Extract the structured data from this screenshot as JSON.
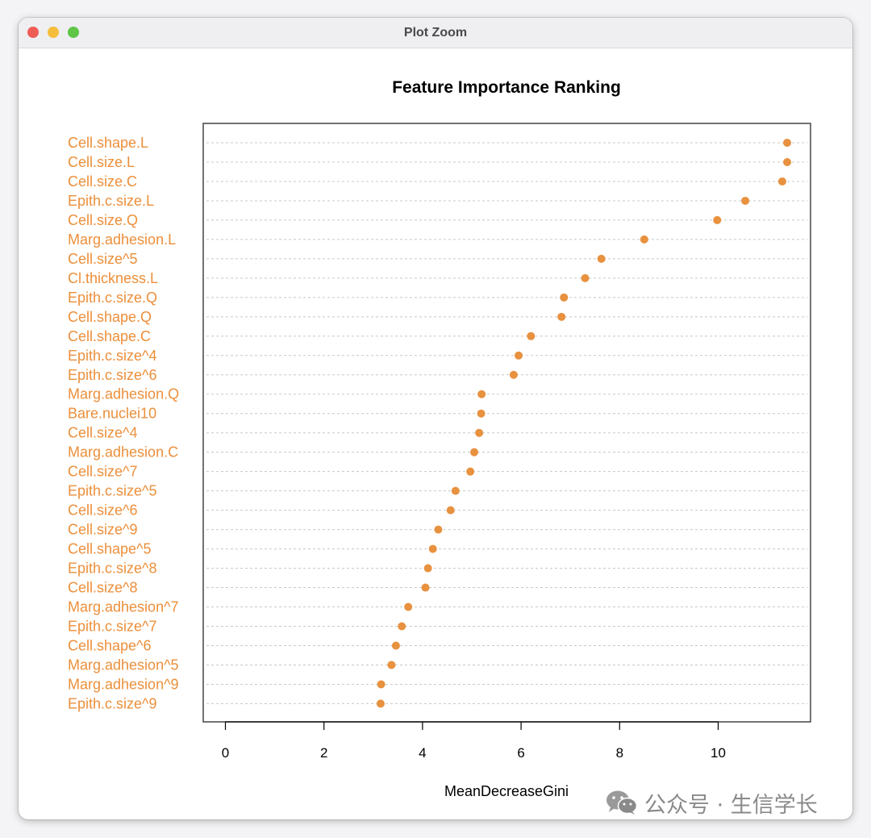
{
  "window": {
    "title": "Plot Zoom"
  },
  "watermark": {
    "icon": "wechat-icon",
    "text": "公众号 · 生信学长"
  },
  "colors": {
    "point": "#e8913f",
    "label": "#ec8f3a",
    "grid": "#c8c8c8",
    "axis": "#000000"
  },
  "chart_data": {
    "type": "scatter",
    "title": "Feature Importance Ranking",
    "xlabel": "MeanDecreaseGini",
    "ylabel": "",
    "xlim": [
      -0.45,
      11.9
    ],
    "xticks": [
      0,
      2,
      4,
      6,
      8,
      10
    ],
    "grid": "horizontal dashed lines at each feature",
    "categories": [
      "Cell.shape.L",
      "Cell.size.L",
      "Cell.size.C",
      "Epith.c.size.L",
      "Cell.size.Q",
      "Marg.adhesion.L",
      "Cell.size^5",
      "Cl.thickness.L",
      "Epith.c.size.Q",
      "Cell.shape.Q",
      "Cell.shape.C",
      "Epith.c.size^4",
      "Epith.c.size^6",
      "Marg.adhesion.Q",
      "Bare.nuclei10",
      "Cell.size^4",
      "Marg.adhesion.C",
      "Cell.size^7",
      "Epith.c.size^5",
      "Cell.size^6",
      "Cell.size^9",
      "Cell.shape^5",
      "Epith.c.size^8",
      "Cell.size^8",
      "Marg.adhesion^7",
      "Epith.c.size^7",
      "Cell.shape^6",
      "Marg.adhesion^5",
      "Marg.adhesion^9",
      "Epith.c.size^9"
    ],
    "values": [
      11.4,
      11.4,
      11.3,
      10.55,
      9.98,
      8.5,
      7.63,
      7.3,
      6.87,
      6.82,
      6.2,
      5.95,
      5.85,
      5.2,
      5.19,
      5.15,
      5.05,
      4.97,
      4.67,
      4.57,
      4.32,
      4.21,
      4.11,
      4.06,
      3.71,
      3.58,
      3.46,
      3.37,
      3.16,
      3.15
    ]
  }
}
